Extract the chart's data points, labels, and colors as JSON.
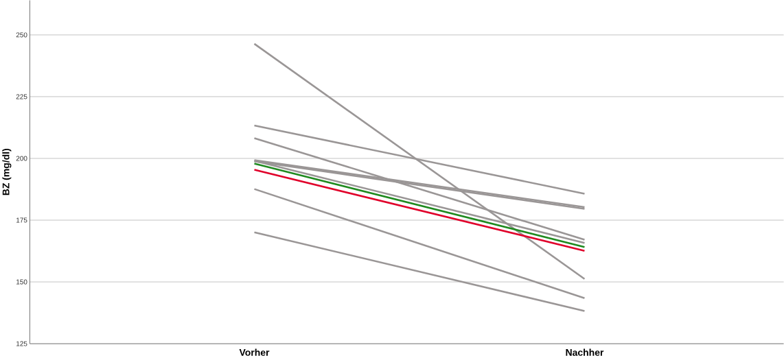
{
  "chart_data": {
    "type": "line",
    "ylabel": "BZ (mg/dl)",
    "categories": [
      "Vorher",
      "Nachher"
    ],
    "ylim": [
      125,
      264
    ],
    "yticks": [
      125,
      150,
      175,
      200,
      225,
      250
    ],
    "grid": "y",
    "marker": "none",
    "line_style": "solid",
    "series": [
      {
        "color": "#9a9696",
        "values": [
          246.4,
          151.2
        ]
      },
      {
        "color": "#9a9696",
        "values": [
          213.3,
          185.7
        ]
      },
      {
        "color": "#9a9696",
        "values": [
          208.2,
          167.1
        ]
      },
      {
        "color": "#9a9696",
        "values": [
          199.3,
          180.3
        ]
      },
      {
        "color": "#9a9696",
        "values": [
          198.8,
          179.6
        ]
      },
      {
        "color": "#9a9696",
        "values": [
          199.0,
          165.8
        ]
      },
      {
        "color": "#9a9696",
        "values": [
          187.6,
          143.4
        ]
      },
      {
        "color": "#9a9696",
        "values": [
          170.1,
          138.2
        ]
      },
      {
        "color": "#1f8a1f",
        "values": [
          197.9,
          164.1
        ]
      },
      {
        "color": "#e0002a",
        "values": [
          195.4,
          162.6
        ]
      }
    ]
  }
}
